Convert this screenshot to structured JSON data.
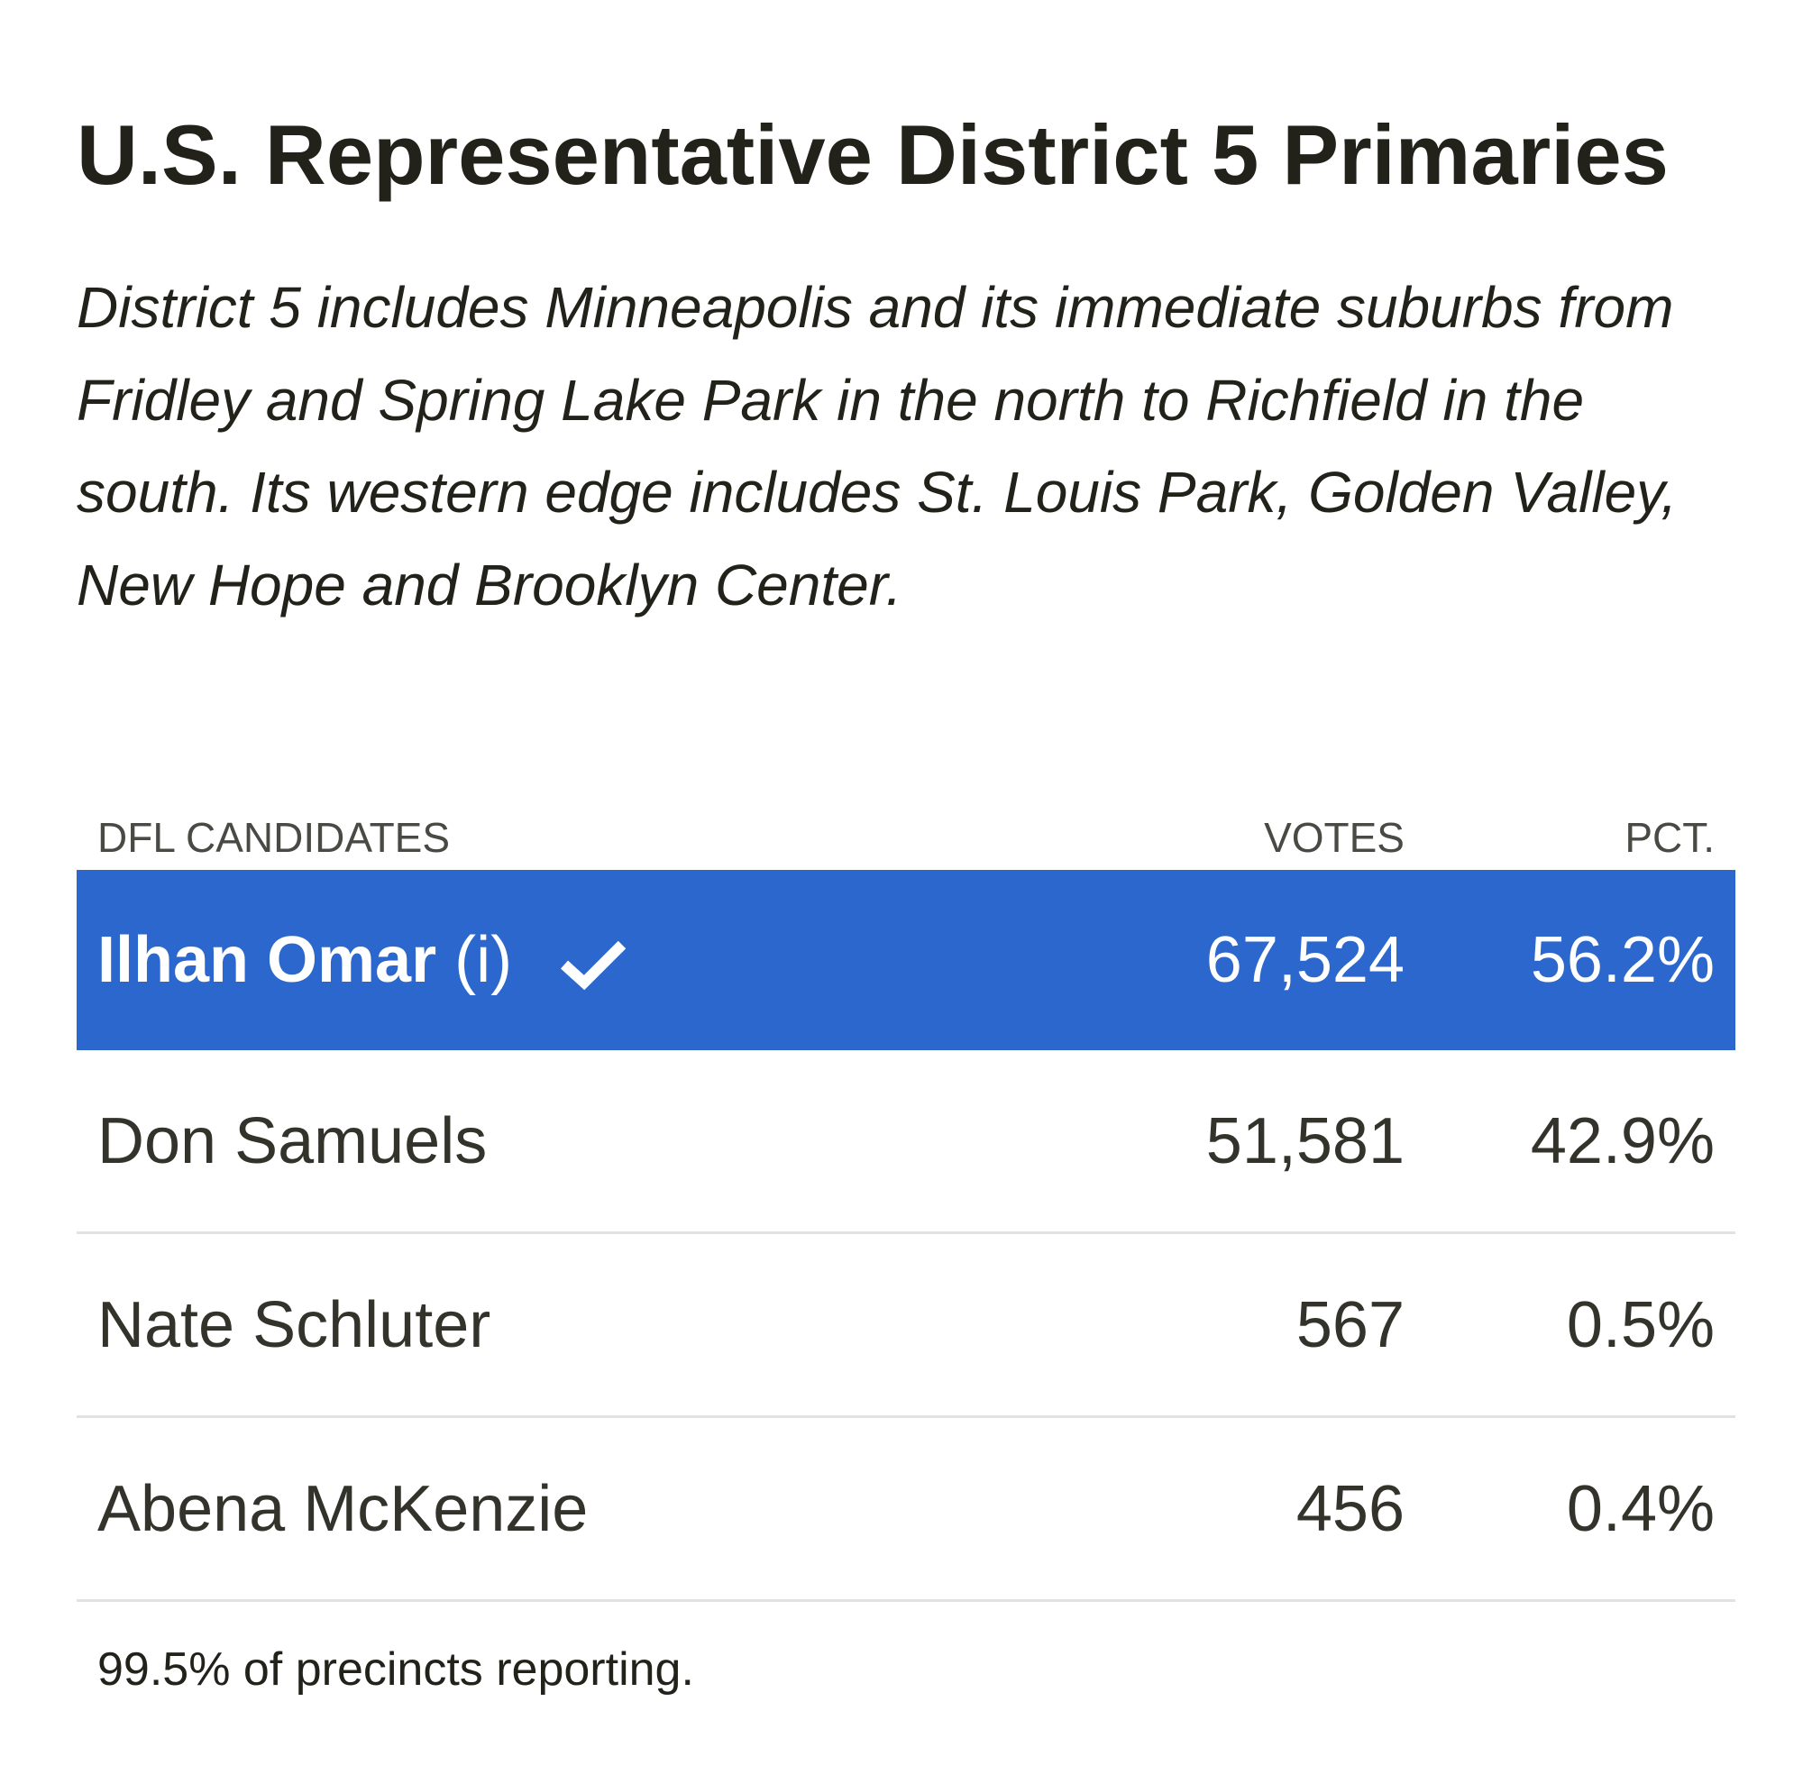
{
  "header": {
    "title": "U.S. Representative District 5 Primaries",
    "description": "District 5 includes Minneapolis and its immediate suburbs from Fridley and Spring Lake Park in the north to Richfield in the south. Its western edge includes St. Louis Park, Golden Valley, New Hope and Brooklyn Center."
  },
  "table": {
    "columns": [
      "DFL CANDIDATES",
      "VOTES",
      "PCT."
    ],
    "rows": [
      {
        "name": "Ilhan Omar",
        "note": "(i)",
        "votes": "67,524",
        "pct": "56.2%",
        "winner": true
      },
      {
        "name": "Don Samuels",
        "votes": "51,581",
        "pct": "42.9%",
        "winner": false
      },
      {
        "name": "Nate Schluter",
        "votes": "567",
        "pct": "0.5%",
        "winner": false
      },
      {
        "name": "Abena McKenzie",
        "votes": "456",
        "pct": "0.4%",
        "winner": false
      }
    ]
  },
  "footer": "99.5% of precincts reporting."
}
